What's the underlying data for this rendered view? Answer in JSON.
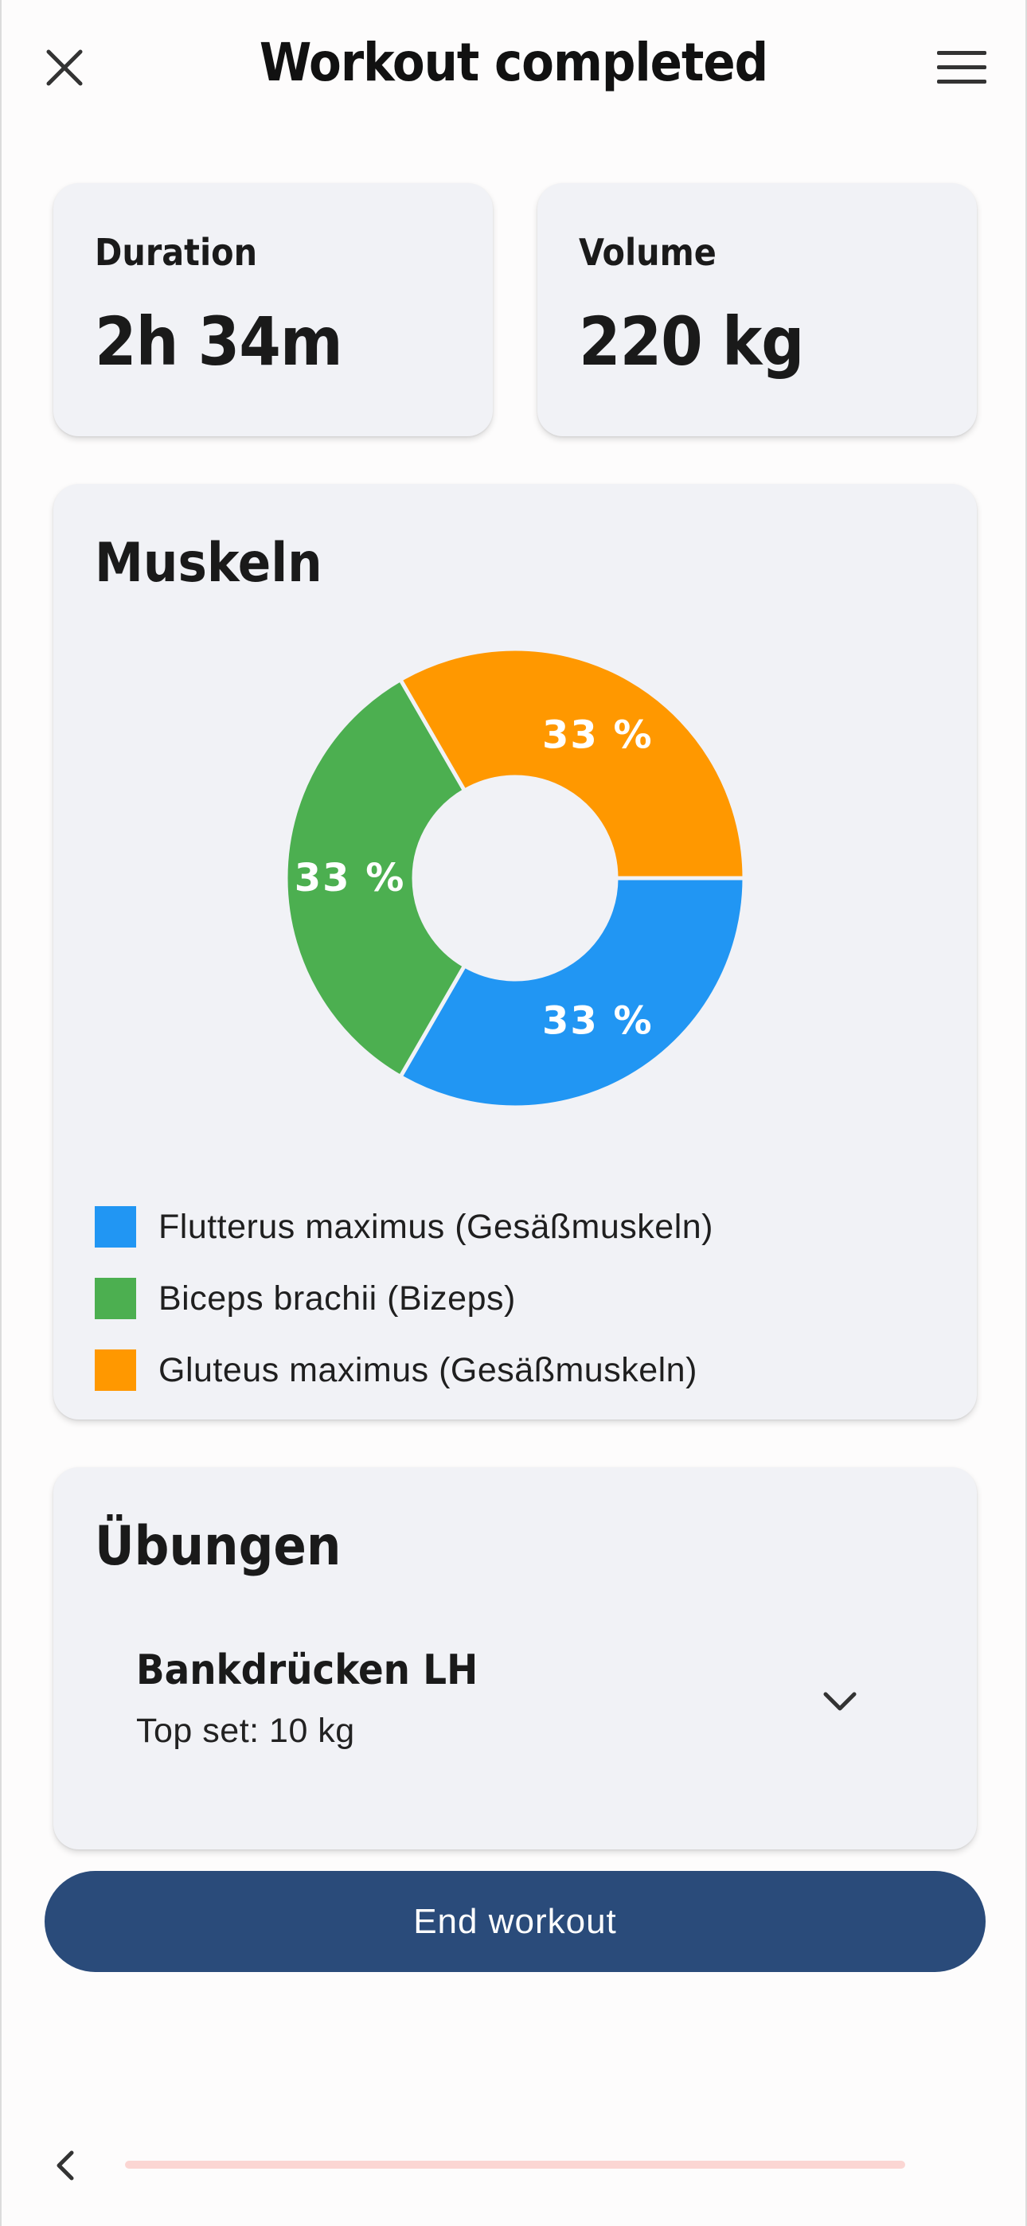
{
  "header": {
    "title": "Workout completed",
    "close_icon": "close-icon",
    "menu_icon": "hamburger-menu-icon"
  },
  "stats": {
    "duration": {
      "label": "Duration",
      "value": "2h 34m"
    },
    "volume": {
      "label": "Volume",
      "value": "220 kg"
    }
  },
  "muscles": {
    "title": "Muskeln",
    "legend": [
      {
        "label": "Flutterus maximus (Gesäßmuskeln)",
        "color": "#2196f3"
      },
      {
        "label": "Biceps brachii (Bizeps)",
        "color": "#4caf50"
      },
      {
        "label": "Gluteus maximus (Gesäßmuskeln)",
        "color": "#ff9800"
      }
    ]
  },
  "chart_data": {
    "type": "pie",
    "donut": true,
    "categories": [
      "Flutterus maximus (Gesäßmuskeln)",
      "Biceps brachii (Bizeps)",
      "Gluteus maximus (Gesäßmuskeln)"
    ],
    "values": [
      33.33,
      33.33,
      33.33
    ],
    "data_labels": [
      "33 %",
      "33 %",
      "33 %"
    ],
    "colors": [
      "#2196f3",
      "#4caf50",
      "#ff9800"
    ],
    "legend_position": "bottom"
  },
  "exercises": {
    "title": "Übungen",
    "items": [
      {
        "name": "Bankdrücken LH",
        "subtitle": "Top set: 10 kg",
        "expand_icon": "chevron-down-icon"
      }
    ]
  },
  "actions": {
    "end_workout": "End workout",
    "end_workout_color": "#2a4b7a"
  },
  "bottom_bar": {
    "back_icon": "chevron-left-icon",
    "progress_color": "#fbd6d3"
  }
}
